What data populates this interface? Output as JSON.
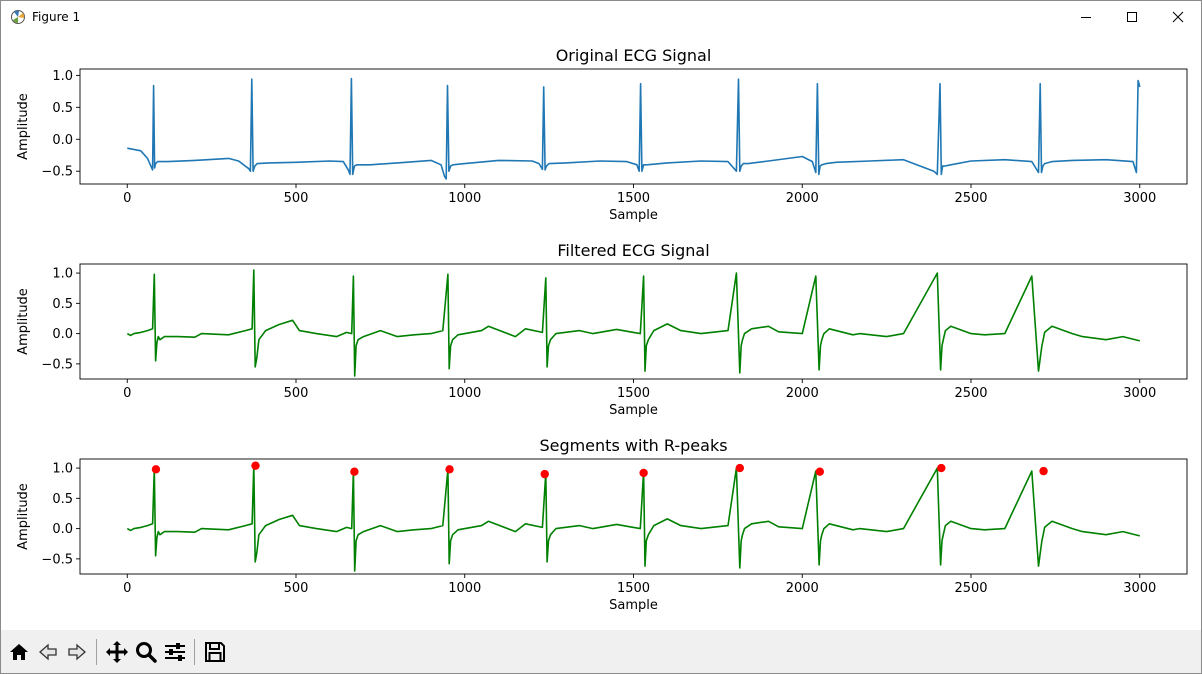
{
  "window": {
    "title": "Figure 1",
    "icon": "matplotlib-icon",
    "controls": [
      "minimize-icon",
      "maximize-icon",
      "close-icon"
    ]
  },
  "toolbar": {
    "buttons": [
      "home-icon",
      "back-icon",
      "forward-icon",
      "pan-icon",
      "zoom-icon",
      "configure-subplots-icon",
      "save-icon"
    ]
  },
  "chart_data": [
    {
      "type": "line",
      "title": "Original ECG Signal",
      "xlabel": "Sample",
      "ylabel": "Amplitude",
      "xlim": [
        -140,
        3140
      ],
      "ylim": [
        -0.7,
        1.1
      ],
      "xticks": [
        0,
        500,
        1000,
        1500,
        2000,
        2500,
        3000
      ],
      "xtick_labels": [
        "0",
        "500",
        "1000",
        "1500",
        "2000",
        "2500",
        "3000"
      ],
      "yticks": [
        1.0,
        0.5,
        0.0,
        -0.5
      ],
      "ytick_labels": [
        "1.0",
        "0.5",
        "0.0",
        "−0.5"
      ],
      "grid": false,
      "series": [
        {
          "color": "#1f77b4",
          "x": [
            0,
            40,
            60,
            75,
            78,
            81,
            84,
            90,
            120,
            200,
            300,
            330,
            360,
            365,
            369,
            373,
            378,
            385,
            420,
            500,
            600,
            640,
            655,
            660,
            664,
            668,
            673,
            680,
            720,
            800,
            900,
            930,
            940,
            945,
            949,
            953,
            958,
            965,
            1000,
            1100,
            1200,
            1220,
            1230,
            1234,
            1238,
            1242,
            1250,
            1300,
            1400,
            1480,
            1510,
            1517,
            1521,
            1525,
            1530,
            1540,
            1600,
            1700,
            1780,
            1805,
            1811,
            1815,
            1819,
            1825,
            1840,
            1900,
            2000,
            2030,
            2040,
            2045,
            2049,
            2053,
            2058,
            2070,
            2100,
            2200,
            2300,
            2390,
            2400,
            2408,
            2412,
            2416,
            2421,
            2440,
            2500,
            2600,
            2680,
            2700,
            2705,
            2709,
            2713,
            2718,
            2740,
            2800,
            2900,
            2980,
            2990,
            2995,
            3000
          ],
          "y": [
            -0.14,
            -0.18,
            -0.3,
            -0.48,
            0.84,
            -0.45,
            -0.38,
            -0.35,
            -0.35,
            -0.33,
            -0.3,
            -0.34,
            -0.46,
            -0.5,
            0.94,
            -0.5,
            -0.42,
            -0.38,
            -0.37,
            -0.36,
            -0.34,
            -0.35,
            -0.48,
            -0.55,
            0.95,
            -0.55,
            -0.42,
            -0.4,
            -0.4,
            -0.37,
            -0.33,
            -0.4,
            -0.58,
            -0.62,
            0.84,
            -0.5,
            -0.42,
            -0.4,
            -0.38,
            -0.33,
            -0.34,
            -0.38,
            -0.47,
            0.82,
            -0.48,
            -0.42,
            -0.38,
            -0.37,
            -0.34,
            -0.35,
            -0.4,
            -0.5,
            0.87,
            -0.5,
            -0.4,
            -0.4,
            -0.37,
            -0.34,
            -0.35,
            -0.5,
            0.94,
            -0.5,
            -0.42,
            -0.38,
            -0.38,
            -0.34,
            -0.27,
            -0.35,
            -0.52,
            0.87,
            -0.55,
            -0.42,
            -0.4,
            -0.38,
            -0.36,
            -0.34,
            -0.32,
            -0.5,
            -0.55,
            0.87,
            -0.55,
            -0.42,
            -0.42,
            -0.4,
            -0.34,
            -0.32,
            -0.35,
            -0.52,
            0.87,
            -0.52,
            -0.42,
            -0.38,
            -0.35,
            -0.33,
            -0.32,
            -0.35,
            -0.52,
            0.92,
            0.82
          ]
        }
      ]
    },
    {
      "type": "line",
      "title": "Filtered ECG Signal",
      "xlabel": "Sample",
      "ylabel": "Amplitude",
      "xlim": [
        -140,
        3140
      ],
      "ylim": [
        -0.75,
        1.15
      ],
      "xticks": [
        0,
        500,
        1000,
        1500,
        2000,
        2500,
        3000
      ],
      "xtick_labels": [
        "0",
        "500",
        "1000",
        "1500",
        "2000",
        "2500",
        "3000"
      ],
      "yticks": [
        1.0,
        0.5,
        0.0,
        -0.5
      ],
      "ytick_labels": [
        "1.0",
        "0.5",
        "0.0",
        "−0.5"
      ],
      "grid": false,
      "series": [
        {
          "color": "#008000",
          "x": [
            0,
            10,
            20,
            40,
            60,
            75,
            80,
            84,
            88,
            92,
            97,
            110,
            150,
            200,
            220,
            300,
            350,
            370,
            375,
            379,
            384,
            390,
            410,
            450,
            490,
            510,
            560,
            620,
            650,
            665,
            670,
            674,
            678,
            684,
            700,
            750,
            800,
            850,
            900,
            935,
            950,
            954,
            958,
            964,
            980,
            1050,
            1070,
            1150,
            1180,
            1230,
            1240,
            1244,
            1248,
            1254,
            1270,
            1340,
            1380,
            1450,
            1500,
            1520,
            1530,
            1534,
            1538,
            1544,
            1560,
            1600,
            1640,
            1700,
            1780,
            1805,
            1815,
            1819,
            1823,
            1829,
            1850,
            1900,
            1930,
            2000,
            2040,
            2050,
            2054,
            2058,
            2064,
            2080,
            2150,
            2170,
            2250,
            2300,
            2400,
            2410,
            2414,
            2418,
            2424,
            2440,
            2500,
            2540,
            2600,
            2680,
            2700,
            2710,
            2714,
            2718,
            2724,
            2740,
            2800,
            2830,
            2900,
            2950,
            3000
          ],
          "y": [
            0.0,
            -0.03,
            0.0,
            0.02,
            0.05,
            0.08,
            0.98,
            -0.45,
            -0.15,
            -0.05,
            -0.1,
            -0.05,
            -0.05,
            -0.06,
            0.0,
            -0.02,
            0.05,
            0.08,
            1.05,
            -0.55,
            -0.4,
            -0.1,
            0.05,
            0.15,
            0.22,
            0.05,
            0.0,
            -0.05,
            0.02,
            0.0,
            0.95,
            -0.7,
            -0.2,
            -0.1,
            -0.05,
            0.05,
            -0.05,
            -0.02,
            0.0,
            0.05,
            0.98,
            -0.58,
            -0.2,
            -0.1,
            -0.02,
            0.05,
            0.12,
            -0.05,
            0.08,
            0.02,
            0.92,
            -0.55,
            -0.2,
            -0.1,
            0.0,
            0.05,
            0.0,
            0.07,
            0.02,
            0.0,
            0.95,
            -0.62,
            -0.2,
            -0.1,
            0.05,
            0.16,
            0.05,
            0.0,
            0.05,
            1.0,
            -0.65,
            -0.2,
            -0.1,
            0.0,
            0.08,
            0.12,
            0.03,
            0.0,
            0.95,
            -0.6,
            -0.2,
            -0.1,
            0.0,
            0.08,
            -0.02,
            0.0,
            -0.05,
            0.0,
            1.0,
            -0.6,
            -0.2,
            -0.1,
            0.05,
            0.12,
            0.0,
            -0.02,
            0.0,
            0.95,
            -0.62,
            -0.2,
            -0.1,
            0.02,
            0.05,
            0.12,
            0.0,
            -0.05,
            -0.1,
            -0.05,
            -0.12
          ]
        }
      ]
    },
    {
      "type": "line",
      "title": "Segments with R-peaks",
      "xlabel": "Sample",
      "ylabel": "Amplitude",
      "xlim": [
        -140,
        3140
      ],
      "ylim": [
        -0.75,
        1.15
      ],
      "xticks": [
        0,
        500,
        1000,
        1500,
        2000,
        2500,
        3000
      ],
      "xtick_labels": [
        "0",
        "500",
        "1000",
        "1500",
        "2000",
        "2500",
        "3000"
      ],
      "yticks": [
        1.0,
        0.5,
        0.0,
        -0.5
      ],
      "ytick_labels": [
        "1.0",
        "0.5",
        "0.0",
        "−0.5"
      ],
      "grid": false,
      "series": [
        {
          "color": "#008000",
          "x": [
            0,
            10,
            20,
            40,
            60,
            75,
            80,
            84,
            88,
            92,
            97,
            110,
            150,
            200,
            220,
            300,
            350,
            370,
            375,
            379,
            384,
            390,
            410,
            450,
            490,
            510,
            560,
            620,
            650,
            665,
            670,
            674,
            678,
            684,
            700,
            750,
            800,
            850,
            900,
            935,
            950,
            954,
            958,
            964,
            980,
            1050,
            1070,
            1150,
            1180,
            1230,
            1240,
            1244,
            1248,
            1254,
            1270,
            1340,
            1380,
            1450,
            1500,
            1520,
            1530,
            1534,
            1538,
            1544,
            1560,
            1600,
            1640,
            1700,
            1780,
            1805,
            1815,
            1819,
            1823,
            1829,
            1850,
            1900,
            1930,
            2000,
            2040,
            2050,
            2054,
            2058,
            2064,
            2080,
            2150,
            2170,
            2250,
            2300,
            2400,
            2410,
            2414,
            2418,
            2424,
            2440,
            2500,
            2540,
            2600,
            2680,
            2700,
            2710,
            2714,
            2718,
            2724,
            2740,
            2800,
            2830,
            2900,
            2950,
            3000
          ],
          "y": [
            0.0,
            -0.03,
            0.0,
            0.02,
            0.05,
            0.08,
            0.98,
            -0.45,
            -0.15,
            -0.05,
            -0.1,
            -0.05,
            -0.05,
            -0.06,
            0.0,
            -0.02,
            0.05,
            0.08,
            1.05,
            -0.55,
            -0.4,
            -0.1,
            0.05,
            0.15,
            0.22,
            0.05,
            0.0,
            -0.05,
            0.02,
            0.0,
            0.95,
            -0.7,
            -0.2,
            -0.1,
            -0.05,
            0.05,
            -0.05,
            -0.02,
            0.0,
            0.05,
            0.98,
            -0.58,
            -0.2,
            -0.1,
            -0.02,
            0.05,
            0.12,
            -0.05,
            0.08,
            0.02,
            0.92,
            -0.55,
            -0.2,
            -0.1,
            0.0,
            0.05,
            0.0,
            0.07,
            0.02,
            0.0,
            0.95,
            -0.62,
            -0.2,
            -0.1,
            0.05,
            0.16,
            0.05,
            0.0,
            0.05,
            1.0,
            -0.65,
            -0.2,
            -0.1,
            0.0,
            0.08,
            0.12,
            0.03,
            0.0,
            0.95,
            -0.6,
            -0.2,
            -0.1,
            0.0,
            0.08,
            -0.02,
            0.0,
            -0.05,
            0.0,
            1.0,
            -0.6,
            -0.2,
            -0.1,
            0.05,
            0.12,
            0.0,
            -0.02,
            0.0,
            0.95,
            -0.62,
            -0.2,
            -0.1,
            0.02,
            0.05,
            0.12,
            0.0,
            -0.05,
            -0.1,
            -0.05,
            -0.12
          ]
        }
      ],
      "markers": {
        "color": "#ff0000",
        "x": [
          85,
          380,
          673,
          955,
          1237,
          1530,
          1815,
          2052,
          2412,
          2715
        ],
        "y": [
          0.98,
          1.04,
          0.94,
          0.98,
          0.9,
          0.92,
          1.0,
          0.94,
          1.0,
          0.95
        ]
      }
    }
  ]
}
